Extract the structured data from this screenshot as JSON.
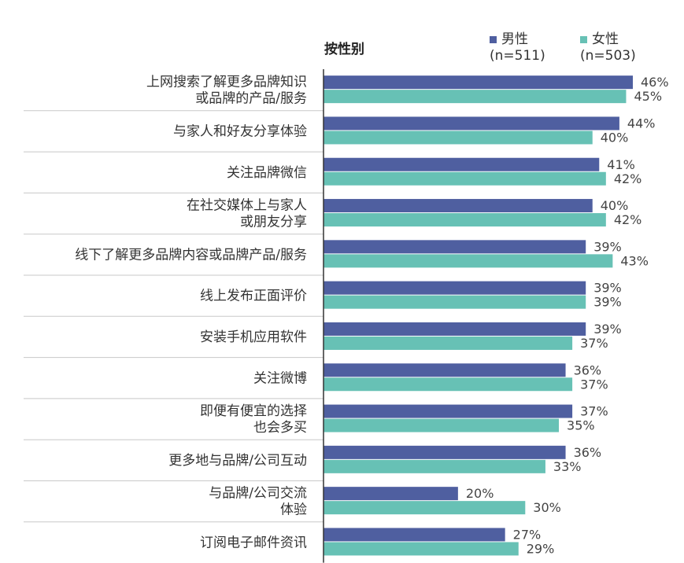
{
  "legend": {
    "group_title": "按性别",
    "male": {
      "label": "男性",
      "n": "(n=511)",
      "color": "#4F5FA0"
    },
    "female": {
      "label": "女性",
      "n": "(n=503)",
      "color": "#67C1B5"
    }
  },
  "chart_data": {
    "type": "bar",
    "orientation": "horizontal",
    "categories": [
      [
        "上网搜索了解更多品牌知识",
        "或品牌的产品/服务"
      ],
      [
        "与家人和好友分享体验"
      ],
      [
        "关注品牌微信"
      ],
      [
        "在社交媒体上与家人",
        "或朋友分享"
      ],
      [
        "线下了解更多品牌内容或品牌产品/服务"
      ],
      [
        "线上发布正面评价"
      ],
      [
        "安装手机应用软件"
      ],
      [
        "关注微博"
      ],
      [
        "即便有便宜的选择",
        "也会多买"
      ],
      [
        "更多地与品牌/公司互动"
      ],
      [
        "与品牌/公司交流",
        "体验"
      ],
      [
        "订阅电子邮件资讯"
      ]
    ],
    "series": [
      {
        "name": "男性",
        "color": "#4F5FA0",
        "values": [
          46,
          44,
          41,
          40,
          39,
          39,
          39,
          36,
          37,
          36,
          20,
          27
        ],
        "labels": [
          "46%",
          "44%",
          "41%",
          "40%",
          "39%",
          "39%",
          "39%",
          "36%",
          "37%",
          "36%",
          "20%",
          "27%"
        ]
      },
      {
        "name": "女性",
        "color": "#67C1B5",
        "values": [
          45,
          40,
          42,
          42,
          43,
          39,
          37,
          37,
          35,
          33,
          30,
          29
        ],
        "labels": [
          "45%",
          "40%",
          "42%",
          "42%",
          "43%",
          "39%",
          "37%",
          "37%",
          "35%",
          "33%",
          "30%",
          "29%"
        ]
      }
    ],
    "xlim": [
      0,
      50
    ],
    "grid": false,
    "legend_position": "top"
  }
}
